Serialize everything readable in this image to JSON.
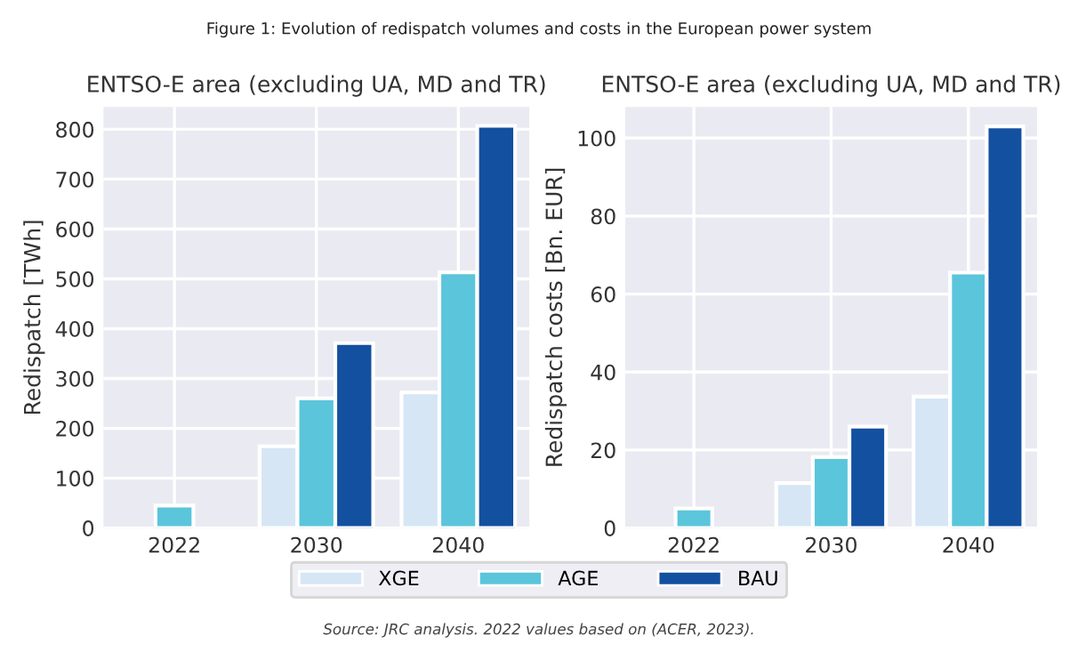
{
  "chart_data": [
    {
      "type": "bar",
      "title": "ENTSO-E area (excluding UA, MD and TR)",
      "ylabel": "Redispatch [TWh]",
      "categories": [
        "2022",
        "2030",
        "2040"
      ],
      "series": [
        {
          "name": "XGE",
          "color": "#d6e6f5",
          "values": [
            0,
            164,
            272
          ]
        },
        {
          "name": "AGE",
          "color": "#5bc5db",
          "values": [
            45,
            260,
            513
          ]
        },
        {
          "name": "BAU",
          "color": "#1350a0",
          "values": [
            0,
            371,
            807
          ]
        }
      ],
      "ylim": [
        0,
        845
      ],
      "yticks": [
        0,
        100,
        200,
        300,
        400,
        500,
        600,
        700,
        800
      ],
      "grid": true,
      "legend": "bottom",
      "annotations": [
        "Figure 1: Evolution of redispatch volumes and costs in the European power system",
        "Source: JRC analysis. 2022 values based on (ACER, 2023)."
      ]
    },
    {
      "type": "bar",
      "title": "ENTSO-E area (excluding UA, MD and TR)",
      "ylabel": "Redispatch costs [Bn. EUR]",
      "categories": [
        "2022",
        "2030",
        "2040"
      ],
      "series": [
        {
          "color": "#d6e6f5",
          "values": [
            0,
            11.5,
            33.7
          ]
        },
        {
          "color": "#5bc5db",
          "values": [
            5,
            18.2,
            65.5
          ]
        },
        {
          "color": "#1350a0",
          "values": [
            0,
            26,
            103
          ]
        }
      ],
      "ylim": [
        0,
        108
      ],
      "yticks": [
        0,
        20,
        40,
        60,
        80,
        100
      ],
      "grid": true
    }
  ]
}
